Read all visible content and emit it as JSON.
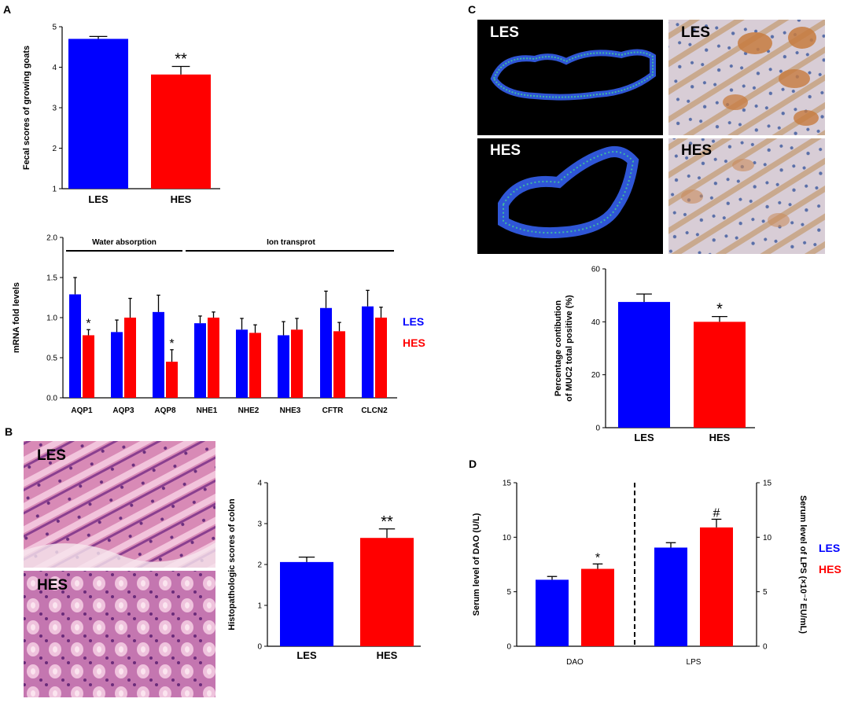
{
  "panels": {
    "a": "A",
    "b": "B",
    "c": "C",
    "d": "D"
  },
  "legend": {
    "les": "LES",
    "hes": "HES"
  },
  "colors": {
    "les": "#0000ff",
    "hes": "#ff0000"
  },
  "micrographs": {
    "c_fluor_les": "LES",
    "c_fluor_hes": "HES",
    "c_ihc_les": "LES",
    "c_ihc_hes": "HES",
    "b_he_les": "LES",
    "b_he_hes": "HES"
  },
  "chart_data": [
    {
      "id": "fecal",
      "type": "bar",
      "ylabel": "Fecal scores of growing goats",
      "ylim": [
        1,
        5
      ],
      "yticks": [
        1,
        2,
        3,
        4,
        5
      ],
      "categories": [
        "LES",
        "HES"
      ],
      "values": [
        4.7,
        3.82
      ],
      "errors": [
        0.06,
        0.2
      ],
      "annotations": [
        "",
        "**"
      ]
    },
    {
      "id": "mrna",
      "type": "bar",
      "ylabel": "mRNA fold levels",
      "ylim": [
        0,
        2.0
      ],
      "yticks": [
        "0.0",
        "0.5",
        "1.0",
        "1.5",
        "2.0"
      ],
      "groups": [
        "Water absorption",
        "Ion transprot"
      ],
      "categories": [
        "AQP1",
        "AQP3",
        "AQP8",
        "NHE1",
        "NHE2",
        "NHE3",
        "CFTR",
        "CLCN2"
      ],
      "series": [
        {
          "name": "LES",
          "values": [
            1.29,
            0.82,
            1.07,
            0.93,
            0.85,
            0.78,
            1.12,
            1.14
          ],
          "errors": [
            0.21,
            0.15,
            0.21,
            0.09,
            0.14,
            0.17,
            0.21,
            0.2
          ]
        },
        {
          "name": "HES",
          "values": [
            0.78,
            1.0,
            0.45,
            1.0,
            0.81,
            0.85,
            0.83,
            1.0
          ],
          "errors": [
            0.07,
            0.24,
            0.15,
            0.07,
            0.1,
            0.14,
            0.11,
            0.13
          ]
        }
      ],
      "annotations": {
        "AQP1": "*",
        "AQP8": "*"
      }
    },
    {
      "id": "histo",
      "type": "bar",
      "ylabel": "Histopathologic scores of colon",
      "ylim": [
        0,
        4
      ],
      "yticks": [
        0,
        1,
        2,
        3,
        4
      ],
      "categories": [
        "LES",
        "HES"
      ],
      "values": [
        2.06,
        2.65
      ],
      "errors": [
        0.12,
        0.22
      ],
      "annotations": [
        "",
        "**"
      ]
    },
    {
      "id": "muc2",
      "type": "bar",
      "ylabel": [
        "Percentage contibution",
        "of MUC2 total positive (%)"
      ],
      "ylim": [
        0,
        60
      ],
      "yticks": [
        0,
        20,
        40,
        60
      ],
      "categories": [
        "LES",
        "HES"
      ],
      "values": [
        47.5,
        40.0
      ],
      "errors": [
        3.0,
        2.0
      ],
      "annotations": [
        "",
        "*"
      ]
    },
    {
      "id": "dao_lps",
      "type": "bar",
      "ylabel_left": "Serum level of DAO (U/L)",
      "ylabel_right": "Serum level of LPS (×10⁻² EU/mL)",
      "ylim": [
        0,
        15
      ],
      "yticks": [
        0,
        5,
        10,
        15
      ],
      "categories": [
        "DAO",
        "LPS"
      ],
      "series": [
        {
          "name": "LES",
          "values": [
            6.1,
            9.05
          ],
          "errors": [
            0.3,
            0.45
          ]
        },
        {
          "name": "HES",
          "values": [
            7.1,
            10.9
          ],
          "errors": [
            0.45,
            0.75
          ]
        }
      ],
      "annotations": {
        "DAO": "*",
        "LPS": "#"
      }
    }
  ]
}
